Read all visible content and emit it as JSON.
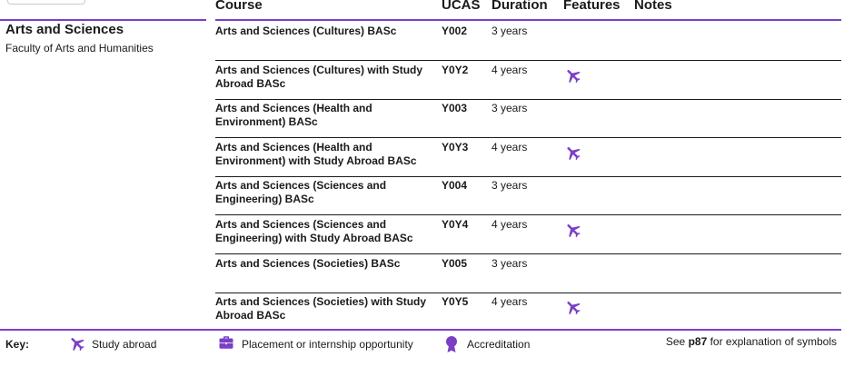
{
  "table": {
    "headers": {
      "course": "Course",
      "ucas": "UCAS",
      "duration": "Duration",
      "features": "Features",
      "notes": "Notes"
    },
    "subject": "Arts and Sciences",
    "faculty": "Faculty of Arts and Humanities",
    "rows": [
      {
        "course": "Arts and Sciences (Cultures) BASc",
        "ucas": "Y002",
        "duration": "3 years",
        "features": []
      },
      {
        "course": "Arts and Sciences (Cultures) with Study Abroad BASc",
        "ucas": "Y0Y2",
        "duration": "4 years",
        "features": [
          "study-abroad"
        ]
      },
      {
        "course": "Arts and Sciences (Health and Environment) BASc",
        "ucas": "Y003",
        "duration": "3 years",
        "features": []
      },
      {
        "course": "Arts and Sciences (Health and Environment) with Study Abroad BASc",
        "ucas": "Y0Y3",
        "duration": "4 years",
        "features": [
          "study-abroad"
        ]
      },
      {
        "course": "Arts and Sciences (Sciences and Engineering) BASc",
        "ucas": "Y004",
        "duration": "3 years",
        "features": []
      },
      {
        "course": "Arts and Sciences (Sciences and Engineering) with Study Abroad BASc",
        "ucas": "Y0Y4",
        "duration": "4 years",
        "features": [
          "study-abroad"
        ]
      },
      {
        "course": "Arts and Sciences (Societies) BASc",
        "ucas": "Y005",
        "duration": "3 years",
        "features": []
      },
      {
        "course": "Arts and Sciences (Societies) with Study Abroad BASc",
        "ucas": "Y0Y5",
        "duration": "4 years",
        "features": [
          "study-abroad"
        ]
      }
    ]
  },
  "key": {
    "label": "Key:",
    "study_abroad": "Study abroad",
    "placement": "Placement or internship opportunity",
    "accreditation": "Accreditation",
    "note_prefix": "See",
    "note_page": "p87",
    "note_suffix": "for explanation of symbols"
  },
  "colors": {
    "accent": "#7b3fc5"
  },
  "icons": {
    "study_abroad": "plane-icon",
    "placement": "briefcase-icon",
    "accreditation": "rosette-icon"
  }
}
